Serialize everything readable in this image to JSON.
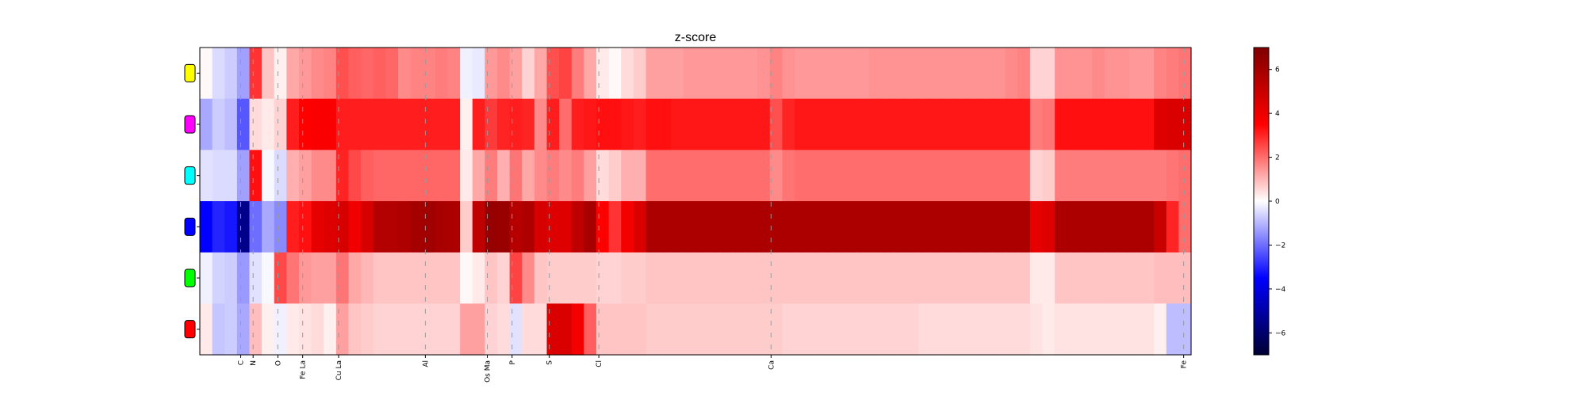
{
  "chart_data": {
    "type": "heatmap",
    "title": "z-score",
    "xlabel": "",
    "ylabel": "",
    "n_columns": 80,
    "x_tick_labels": [
      {
        "label": "C",
        "col": 3.3
      },
      {
        "label": "N",
        "col": 4.3
      },
      {
        "label": "O",
        "col": 6.3
      },
      {
        "label": "Fe La",
        "col": 8.3
      },
      {
        "label": "Cu La",
        "col": 11.2
      },
      {
        "label": "Al",
        "col": 18.2
      },
      {
        "label": "Os Ma",
        "col": 23.2
      },
      {
        "label": "P",
        "col": 25.2
      },
      {
        "label": "S",
        "col": 28.2
      },
      {
        "label": "Cl",
        "col": 32.2
      },
      {
        "label": "Ca",
        "col": 46.1
      },
      {
        "label": "Fe",
        "col": 79.4
      }
    ],
    "rows": [
      {
        "marker_color": "#ffff00",
        "values": [
          0.1,
          -0.5,
          -0.7,
          -1.3,
          2.8,
          0.8,
          0.2,
          1.2,
          1.4,
          1.6,
          1.7,
          2.4,
          2.2,
          2.1,
          2.2,
          2.1,
          1.6,
          1.7,
          1.7,
          1.8,
          1.7,
          -0.2,
          -0.3,
          1.4,
          1.6,
          1.3,
          0.6,
          1.2,
          2.4,
          2.6,
          1.8,
          1.2,
          0.3,
          0.1,
          0.5,
          0.7,
          1.3,
          1.3,
          1.3,
          1.4,
          1.4,
          1.4,
          1.4,
          1.4,
          1.4,
          1.5,
          1.7,
          1.5,
          1.4,
          1.4,
          1.4,
          1.4,
          1.4,
          1.4,
          1.5,
          1.5,
          1.5,
          1.5,
          1.5,
          1.5,
          1.5,
          1.5,
          1.5,
          1.5,
          1.5,
          1.6,
          1.7,
          0.6,
          0.6,
          1.5,
          1.5,
          1.5,
          1.6,
          1.5,
          1.5,
          1.4,
          1.4,
          1.7,
          1.8,
          1.9
        ]
      },
      {
        "marker_color": "#ff00ff",
        "values": [
          -1.2,
          -0.7,
          -0.9,
          -2.3,
          0.5,
          0.3,
          0.6,
          3.1,
          3.5,
          3.6,
          3.6,
          3.1,
          3.1,
          3.1,
          3.1,
          3.1,
          3.1,
          3.1,
          3.1,
          3.1,
          3.1,
          0.2,
          3.1,
          2.7,
          3.0,
          3.1,
          3.0,
          1.6,
          3.1,
          2.0,
          3.1,
          3.2,
          3.3,
          3.3,
          3.2,
          3.1,
          3.3,
          3.3,
          3.2,
          3.2,
          3.2,
          3.2,
          3.2,
          3.2,
          3.2,
          3.2,
          2.4,
          3.0,
          3.2,
          3.2,
          3.2,
          3.2,
          3.2,
          3.2,
          3.2,
          3.2,
          3.2,
          3.2,
          3.2,
          3.2,
          3.2,
          3.2,
          3.2,
          3.2,
          3.2,
          3.2,
          3.2,
          1.8,
          1.9,
          3.3,
          3.3,
          3.3,
          3.3,
          3.3,
          3.3,
          3.3,
          3.3,
          4.4,
          4.5,
          4.5
        ]
      },
      {
        "marker_color": "#00ffff",
        "values": [
          -0.4,
          -0.5,
          -0.5,
          -1.3,
          3.3,
          -0.1,
          -0.5,
          1.1,
          1.3,
          1.6,
          1.6,
          3.0,
          2.5,
          2.2,
          2.1,
          2.1,
          2.1,
          2.1,
          2.1,
          2.1,
          2.1,
          0.3,
          1.2,
          1.8,
          1.1,
          1.9,
          1.2,
          1.6,
          1.8,
          1.6,
          1.8,
          1.3,
          0.5,
          0.7,
          1.1,
          1.1,
          2.0,
          2.0,
          2.0,
          2.0,
          2.0,
          2.0,
          2.0,
          2.0,
          2.0,
          2.0,
          1.6,
          1.9,
          2.0,
          2.0,
          2.0,
          2.0,
          2.0,
          2.0,
          2.0,
          2.0,
          2.0,
          2.0,
          2.0,
          2.0,
          2.0,
          2.0,
          2.0,
          2.0,
          2.0,
          2.0,
          2.0,
          0.6,
          0.7,
          1.8,
          1.8,
          1.8,
          1.8,
          1.8,
          1.8,
          1.8,
          1.8,
          1.8,
          1.9,
          2.0
        ]
      },
      {
        "marker_color": "#0000ff",
        "values": [
          -3.5,
          -3.0,
          -3.2,
          -5.5,
          -2.0,
          -1.2,
          -1.6,
          3.1,
          3.3,
          4.2,
          4.4,
          4.6,
          3.9,
          4.6,
          5.6,
          5.6,
          5.7,
          6.0,
          6.1,
          5.9,
          5.8,
          0.7,
          5.3,
          6.4,
          6.3,
          5.5,
          5.7,
          4.6,
          4.4,
          4.4,
          5.3,
          5.9,
          3.5,
          2.8,
          3.8,
          4.5,
          5.8,
          5.8,
          5.8,
          5.8,
          5.8,
          5.8,
          5.8,
          5.8,
          5.8,
          5.8,
          5.8,
          5.8,
          5.8,
          5.8,
          5.8,
          5.8,
          5.8,
          5.8,
          5.8,
          5.8,
          5.8,
          5.8,
          5.8,
          5.8,
          5.8,
          5.8,
          5.8,
          5.8,
          5.8,
          5.8,
          5.8,
          4.2,
          4.4,
          5.8,
          5.8,
          5.8,
          5.8,
          5.8,
          5.8,
          5.8,
          5.8,
          5.0,
          3.0,
          2.0
        ]
      },
      {
        "marker_color": "#00ff00",
        "values": [
          -0.2,
          -0.6,
          -0.7,
          -1.4,
          -0.4,
          -0.1,
          2.5,
          1.9,
          1.4,
          1.3,
          1.3,
          1.9,
          1.2,
          1.0,
          0.8,
          0.8,
          0.8,
          0.8,
          0.8,
          0.8,
          0.8,
          0.1,
          0.3,
          0.8,
          0.6,
          2.6,
          1.6,
          0.8,
          0.7,
          0.7,
          0.7,
          0.7,
          0.6,
          0.6,
          0.7,
          0.7,
          0.8,
          0.8,
          0.8,
          0.8,
          0.8,
          0.8,
          0.8,
          0.8,
          0.8,
          0.8,
          0.8,
          0.8,
          0.8,
          0.8,
          0.8,
          0.8,
          0.8,
          0.8,
          0.8,
          0.8,
          0.8,
          0.8,
          0.8,
          0.8,
          0.8,
          0.8,
          0.8,
          0.8,
          0.8,
          0.8,
          0.8,
          0.3,
          0.3,
          0.8,
          0.8,
          0.8,
          0.8,
          0.8,
          0.8,
          0.8,
          0.8,
          0.9,
          0.9,
          0.9
        ]
      },
      {
        "marker_color": "#ff0000",
        "values": [
          0.3,
          -0.8,
          -0.7,
          -1.2,
          0.9,
          0.2,
          -0.2,
          0.3,
          0.4,
          0.5,
          0.2,
          1.3,
          0.8,
          0.7,
          0.6,
          0.6,
          0.6,
          0.6,
          0.6,
          0.6,
          0.6,
          1.3,
          1.3,
          0.6,
          0.5,
          -0.4,
          0.5,
          0.5,
          4.5,
          4.5,
          3.8,
          2.2,
          0.8,
          0.8,
          0.8,
          0.8,
          0.7,
          0.7,
          0.7,
          0.7,
          0.7,
          0.7,
          0.7,
          0.7,
          0.7,
          0.7,
          0.7,
          0.6,
          0.6,
          0.6,
          0.6,
          0.6,
          0.6,
          0.6,
          0.6,
          0.6,
          0.6,
          0.6,
          0.5,
          0.5,
          0.5,
          0.5,
          0.5,
          0.5,
          0.5,
          0.5,
          0.5,
          0.4,
          0.3,
          0.4,
          0.4,
          0.4,
          0.4,
          0.4,
          0.4,
          0.4,
          0.4,
          0.2,
          -0.9,
          -0.9
        ]
      }
    ],
    "colorbar": {
      "colormap": "seismic",
      "vmin": -7,
      "vmax": 7,
      "ticks": [
        -6,
        -4,
        -2,
        0,
        2,
        4,
        6
      ]
    },
    "grid": false,
    "column_guides": "dashed-gray"
  }
}
